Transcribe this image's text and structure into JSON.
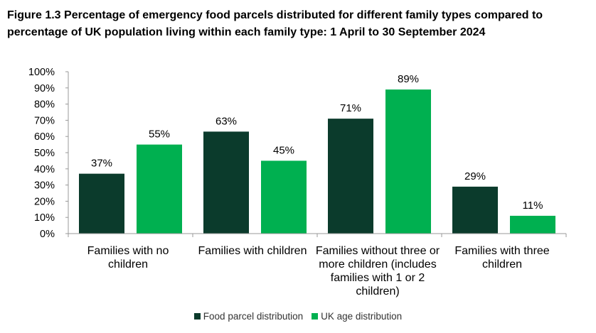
{
  "chart_data": {
    "type": "bar",
    "title": "Figure 1.3 Percentage of emergency food parcels distributed for different family types compared to percentage of UK population living within each family type: 1 April to 30 September 2024",
    "categories": [
      "Families with no children",
      "Families with children",
      "Families without three or more children (includes families with 1 or 2 children)",
      "Families with three children"
    ],
    "series": [
      {
        "name": "Food parcel distribution",
        "color": "#0b3b2c",
        "values": [
          37,
          63,
          71,
          29
        ],
        "labels": [
          "37%",
          "63%",
          "71%",
          "29%"
        ]
      },
      {
        "name": "UK age distribution",
        "color": "#00b050",
        "values": [
          55,
          45,
          89,
          11
        ],
        "labels": [
          "55%",
          "45%",
          "89%",
          "11%"
        ]
      }
    ],
    "ylim": [
      0,
      100
    ],
    "yticks": [
      "0%",
      "10%",
      "20%",
      "30%",
      "40%",
      "50%",
      "60%",
      "70%",
      "80%",
      "90%",
      "100%"
    ],
    "xlabel": "",
    "ylabel": "",
    "legend_position": "bottom",
    "grid": false
  }
}
